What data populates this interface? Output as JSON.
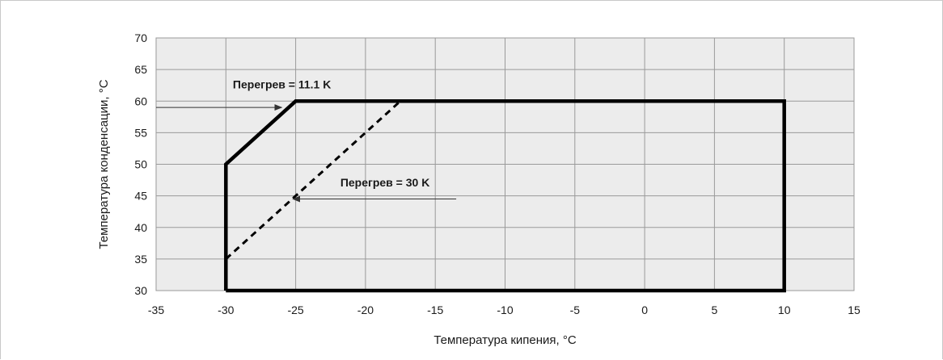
{
  "chart_data": {
    "type": "line",
    "xlabel": "Температура кипения, °C",
    "ylabel": "Температура конденсации, °C",
    "xlim": [
      -35,
      15
    ],
    "ylim": [
      30,
      70
    ],
    "x_ticks": [
      -35,
      -30,
      -25,
      -20,
      -15,
      -10,
      -5,
      0,
      5,
      10,
      15
    ],
    "y_ticks": [
      30,
      35,
      40,
      45,
      50,
      55,
      60,
      65,
      70
    ],
    "x_tick_labels": [
      "-35",
      "-30",
      "-25",
      "-20",
      "-15",
      "-10",
      "-5",
      "0",
      "5",
      "10",
      "15"
    ],
    "y_tick_labels": [
      "30",
      "35",
      "40",
      "45",
      "50",
      "55",
      "60",
      "65",
      "70"
    ],
    "grid": true,
    "series": [
      {
        "style": "solid",
        "points": [
          [
            -30,
            30
          ],
          [
            -30,
            50
          ],
          [
            -25,
            60
          ],
          [
            10,
            60
          ],
          [
            10,
            30
          ],
          [
            -30,
            30
          ]
        ]
      },
      {
        "style": "dashed",
        "points": [
          [
            -30,
            35
          ],
          [
            -17.5,
            60
          ]
        ]
      }
    ],
    "annotations": [
      {
        "text": "Перегрев = 11.1 K",
        "x": -29.5,
        "y": 62.0,
        "arrow_from": [
          -35,
          59
        ],
        "arrow_to": [
          -26,
          59
        ]
      },
      {
        "text": "Перегрев = 30 K",
        "x": -21.8,
        "y": 46.5,
        "arrow_from": [
          -13.5,
          44.5
        ],
        "arrow_to": [
          -25.2,
          44.5
        ]
      }
    ],
    "colors": {
      "grid_bg": "#ececec",
      "grid_line": "#9a9a9a",
      "line": "#000000"
    }
  }
}
